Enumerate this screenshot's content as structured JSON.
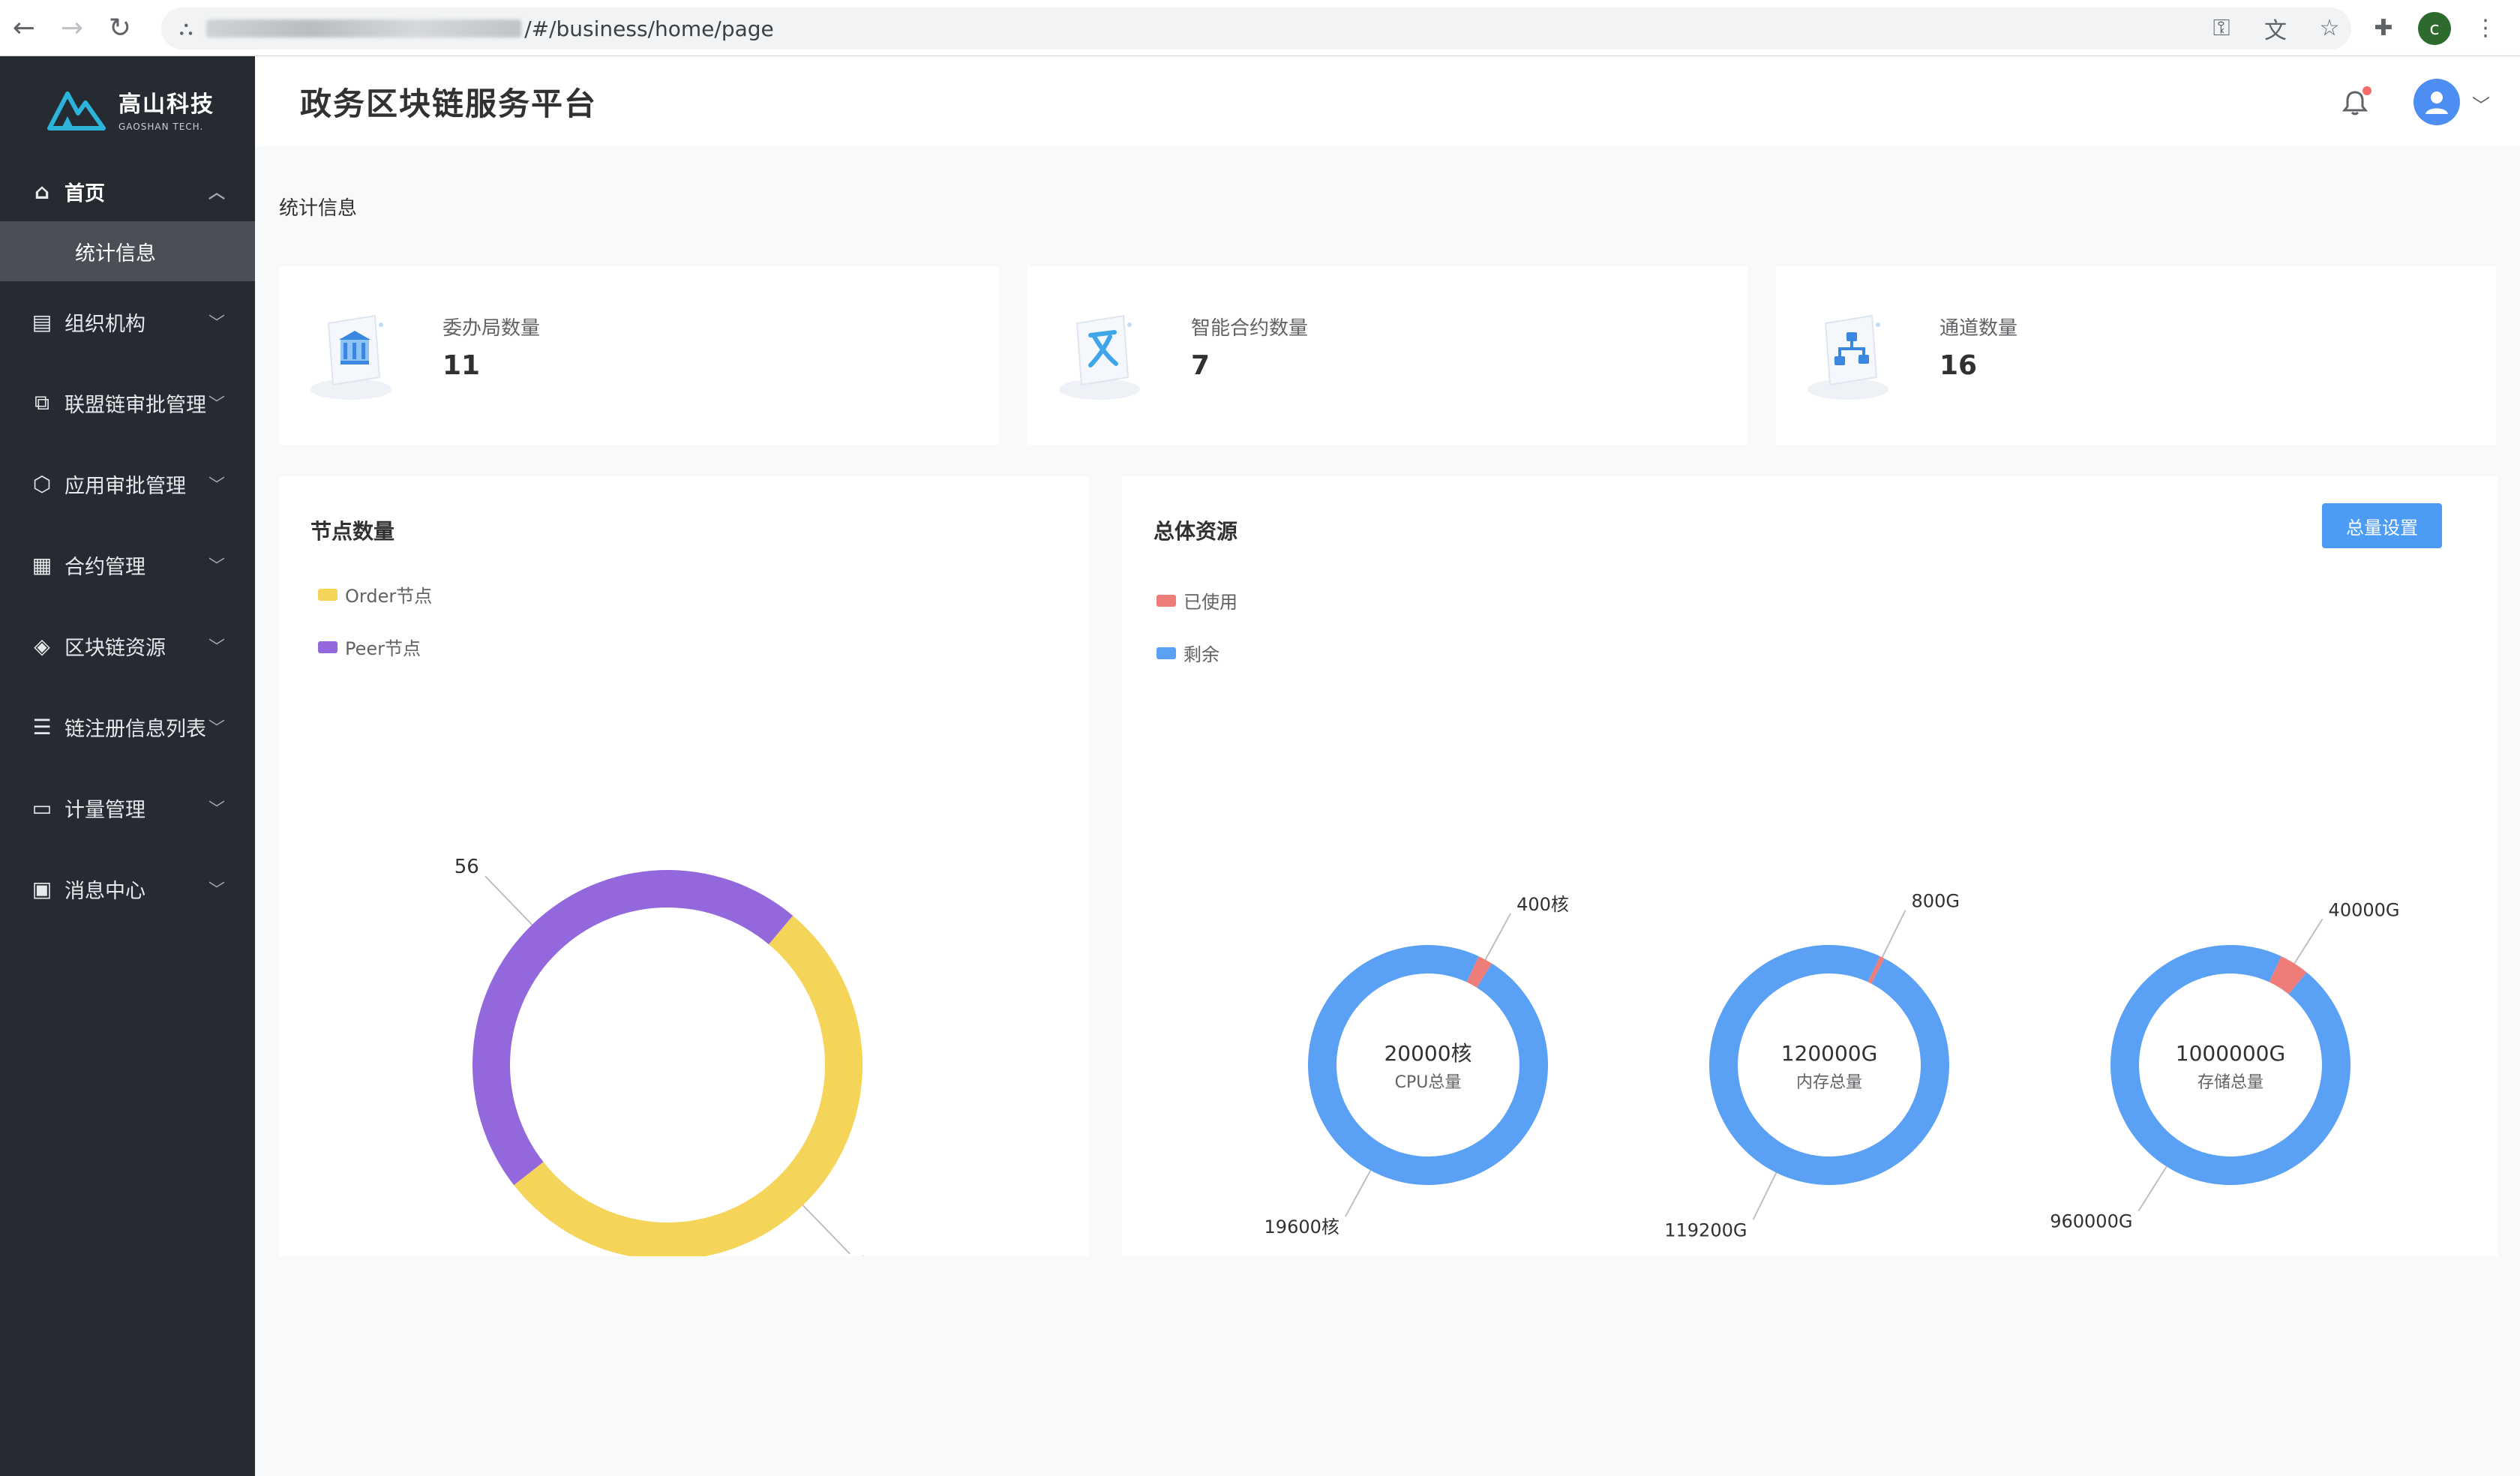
{
  "browser": {
    "url_suffix": "/#/business/home/page"
  },
  "sidebar": {
    "logo": {
      "name_cn": "高山科技",
      "name_en": "GAOSHAN TECH."
    },
    "items": [
      {
        "label": "首页",
        "icon": "home-icon",
        "expanded": true
      },
      {
        "label": "统计信息",
        "sub": true,
        "active": true
      },
      {
        "label": "组织机构",
        "icon": "org-icon"
      },
      {
        "label": "联盟链审批管理",
        "icon": "chain-icon"
      },
      {
        "label": "应用审批管理",
        "icon": "app-icon"
      },
      {
        "label": "合约管理",
        "icon": "contract-icon"
      },
      {
        "label": "区块链资源",
        "icon": "layers-icon"
      },
      {
        "label": "链注册信息列表",
        "icon": "list-icon"
      },
      {
        "label": "计量管理",
        "icon": "monitor-icon"
      },
      {
        "label": "消息中心",
        "icon": "message-icon"
      }
    ]
  },
  "header": {
    "title": "政务区块链服务平台"
  },
  "main": {
    "section_title": "统计信息",
    "stats": [
      {
        "label": "委办局数量",
        "value": "11",
        "icon": "bank-icon"
      },
      {
        "label": "智能合约数量",
        "value": "7",
        "icon": "contract-doc-icon"
      },
      {
        "label": "通道数量",
        "value": "16",
        "icon": "channel-icon"
      }
    ],
    "node_panel": {
      "title": "节点数量",
      "legend": [
        "Order节点",
        "Peer节点"
      ]
    },
    "resource_panel": {
      "title": "总体资源",
      "button": "总量设置",
      "legend": [
        "已使用",
        "剩余"
      ]
    }
  },
  "colors": {
    "order": "#f5d45a",
    "peer": "#9268dc",
    "used": "#ee7c79",
    "remaining": "#5aa1f5"
  },
  "chart_data": [
    {
      "type": "pie",
      "title": "节点数量",
      "series": [
        {
          "name": "Order节点",
          "value": 64
        },
        {
          "name": "Peer节点",
          "value": 56
        }
      ]
    },
    {
      "type": "pie",
      "title": "",
      "center_value": "20000核",
      "center_label": "CPU总量",
      "series": [
        {
          "name": "已使用",
          "value": 400,
          "label": "400核"
        },
        {
          "name": "剩余",
          "value": 19600,
          "label": "19600核"
        }
      ]
    },
    {
      "type": "pie",
      "title": "",
      "center_value": "120000G",
      "center_label": "内存总量",
      "series": [
        {
          "name": "已使用",
          "value": 800,
          "label": "800G"
        },
        {
          "name": "剩余",
          "value": 119200,
          "label": "119200G"
        }
      ]
    },
    {
      "type": "pie",
      "title": "",
      "center_value": "1000000G",
      "center_label": "存储总量",
      "series": [
        {
          "name": "已使用",
          "value": 40000,
          "label": "40000G"
        },
        {
          "name": "剩余",
          "value": 960000,
          "label": "960000G"
        }
      ]
    }
  ]
}
